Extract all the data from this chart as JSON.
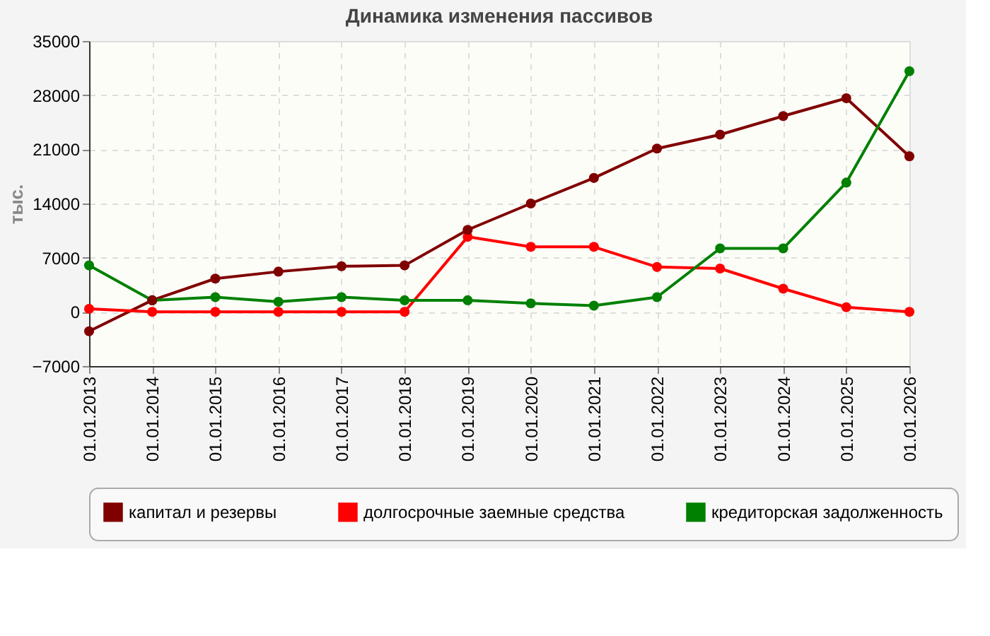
{
  "chart_data": {
    "type": "line",
    "title": "Динамика изменения пассивов",
    "ylabel": "тыс.",
    "categories": [
      "01.01.2013",
      "01.01.2014",
      "01.01.2015",
      "01.01.2016",
      "01.01.2017",
      "01.01.2018",
      "01.01.2019",
      "01.01.2020",
      "01.01.2021",
      "01.01.2022",
      "01.01.2023",
      "01.01.2024",
      "01.01.2025",
      "01.01.2026"
    ],
    "series": [
      {
        "name": "капитал и резервы",
        "color": "#800000",
        "values": [
          -2500,
          1500,
          4300,
          5200,
          5900,
          6000,
          10600,
          14000,
          17300,
          21100,
          22900,
          25300,
          27600,
          20100
        ]
      },
      {
        "name": "долгосрочные заемные средства",
        "color": "#ff0000",
        "values": [
          400,
          0,
          0,
          0,
          0,
          0,
          9700,
          8400,
          8400,
          5800,
          5600,
          3000,
          600,
          0
        ]
      },
      {
        "name": "кредиторская задолженность",
        "color": "#008000",
        "values": [
          6000,
          1500,
          1900,
          1300,
          1900,
          1500,
          1500,
          1100,
          800,
          1900,
          8200,
          8200,
          16700,
          31100
        ]
      }
    ],
    "ylim": [
      -7000,
      35000
    ],
    "yticks": [
      -7000,
      0,
      7000,
      14000,
      21000,
      28000,
      35000
    ],
    "grid": true,
    "legend": "bottom",
    "marker": "circle",
    "line_style": "solid"
  }
}
